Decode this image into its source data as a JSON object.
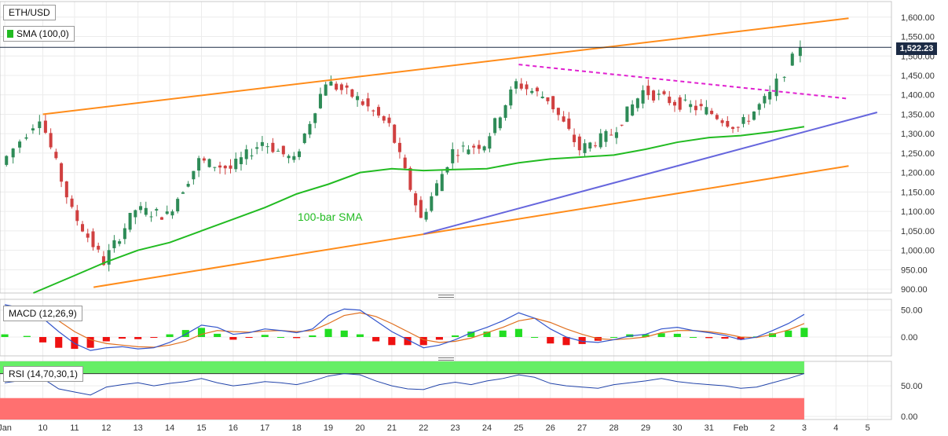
{
  "header": {
    "symbol": "ETH/USD",
    "sma_label": "SMA (100,0)",
    "macd_label": "MACD (12,26,9)",
    "rsi_label": "RSI (14,70,30,1)",
    "current_price": "1,522.23",
    "sma_annotation": "100-bar SMA"
  },
  "colors": {
    "up": "#2e8b57",
    "down": "#d04040",
    "sma": "#22bb22",
    "channel": "#ff8c1a",
    "support": "#6666dd",
    "resistance_dashed": "#e020d0",
    "macd_line": "#3355cc",
    "signal_line": "#e07020",
    "hist_up": "#22dd22",
    "hist_down": "#ee1111",
    "rsi_line": "#2244aa",
    "rsi_overbought_band": "#66ee66",
    "rsi_oversold_band": "#ff7070",
    "price_line": "#1c2b45"
  },
  "chart_data": [
    {
      "type": "candlestick",
      "title": "ETH/USD",
      "y_ticks": [
        "900.00",
        "950.00",
        "1,000.00",
        "1,050.00",
        "1,100.00",
        "1,150.00",
        "1,200.00",
        "1,250.00",
        "1,300.00",
        "1,350.00",
        "1,400.00",
        "1,450.00",
        "1,500.00",
        "1,550.00",
        "1,600.00"
      ],
      "y_tick_values": [
        900,
        950,
        1000,
        1050,
        1100,
        1150,
        1200,
        1250,
        1300,
        1350,
        1400,
        1450,
        1500,
        1550,
        1600
      ],
      "ylim": [
        890,
        1640
      ],
      "x_ticks": [
        "Jan",
        "10",
        "11",
        "12",
        "13",
        "14",
        "15",
        "16",
        "17",
        "18",
        "19",
        "20",
        "21",
        "22",
        "23",
        "24",
        "25",
        "26",
        "27",
        "28",
        "29",
        "30",
        "31",
        "Feb",
        "2",
        "3",
        "4",
        "5"
      ],
      "x_tick_days": [
        -1.2,
        0,
        1,
        2,
        3,
        4,
        5,
        6,
        7,
        8,
        9,
        10,
        11,
        12,
        13,
        14,
        15,
        16,
        17,
        18,
        19,
        20,
        21,
        22,
        23,
        24,
        25,
        26
      ],
      "xlim": [
        -1.35,
        26.75
      ],
      "candle_days": [
        -1.25,
        0,
        1,
        2,
        3,
        4,
        5,
        6,
        7,
        8,
        9,
        10,
        11,
        12,
        13,
        14,
        15,
        16,
        17,
        18,
        19,
        20,
        21,
        22,
        23,
        24
      ],
      "candle_closes": [
        1220,
        1345,
        1100,
        970,
        1105,
        1090,
        1230,
        1210,
        1280,
        1230,
        1435,
        1390,
        1320,
        1080,
        1255,
        1275,
        1430,
        1390,
        1260,
        1300,
        1410,
        1380,
        1360,
        1315,
        1400,
        1522
      ],
      "current_price": 1522.23,
      "sma_100": {
        "name": "100-bar SMA",
        "days": [
          -0.3,
          1,
          2,
          3,
          4,
          5,
          6,
          7,
          8,
          9,
          10,
          11,
          12,
          13,
          14,
          15,
          16,
          17,
          18,
          19,
          20,
          21,
          22,
          23,
          24
        ],
        "values": [
          890,
          935,
          970,
          1000,
          1020,
          1050,
          1080,
          1110,
          1145,
          1170,
          1200,
          1210,
          1205,
          1208,
          1210,
          1225,
          1235,
          1240,
          1245,
          1260,
          1278,
          1290,
          1295,
          1305,
          1318
        ]
      },
      "trendlines": [
        {
          "name": "upper channel",
          "style": "solid",
          "color": "#ff8c1a",
          "from": [
            0,
            1350
          ],
          "to": [
            25.4,
            1597
          ]
        },
        {
          "name": "lower channel",
          "style": "solid",
          "color": "#ff8c1a",
          "from": [
            1.6,
            905
          ],
          "to": [
            25.4,
            1217
          ]
        },
        {
          "name": "support",
          "style": "solid",
          "color": "#6666dd",
          "from": [
            12,
            1042
          ],
          "to": [
            26.3,
            1355
          ]
        },
        {
          "name": "resistance",
          "style": "dashed",
          "color": "#e020d0",
          "from": [
            15,
            1478
          ],
          "to": [
            25.4,
            1390
          ]
        }
      ]
    },
    {
      "type": "line",
      "title": "MACD (12,26,9)",
      "y_ticks": [
        "50.00",
        "0.00"
      ],
      "y_tick_values": [
        50,
        0
      ],
      "ylim": [
        -35,
        70
      ],
      "days": [
        -1.2,
        -0.5,
        0,
        0.5,
        1,
        1.5,
        2,
        2.5,
        3,
        3.5,
        4,
        4.5,
        5,
        5.5,
        6,
        6.5,
        7,
        7.5,
        8,
        8.5,
        9,
        9.5,
        10,
        10.5,
        11,
        11.5,
        12,
        12.5,
        13,
        13.5,
        14,
        14.5,
        15,
        15.5,
        16,
        16.5,
        17,
        17.5,
        18,
        18.5,
        19,
        19.5,
        20,
        20.5,
        21,
        21.5,
        22,
        22.5,
        23,
        23.5,
        24
      ],
      "macd": [
        60,
        52,
        35,
        10,
        -12,
        -25,
        -20,
        -18,
        -22,
        -20,
        -10,
        5,
        22,
        18,
        5,
        8,
        15,
        12,
        8,
        15,
        40,
        52,
        50,
        30,
        10,
        -5,
        -20,
        -15,
        -5,
        8,
        18,
        30,
        45,
        35,
        15,
        0,
        -8,
        -10,
        -5,
        2,
        5,
        15,
        18,
        12,
        8,
        3,
        -5,
        0,
        12,
        25,
        42
      ],
      "signal": [
        55,
        50,
        45,
        30,
        10,
        -5,
        -12,
        -15,
        -18,
        -19,
        -15,
        -8,
        5,
        12,
        10,
        9,
        11,
        12,
        10,
        12,
        25,
        40,
        45,
        38,
        25,
        10,
        -5,
        -10,
        -8,
        -2,
        8,
        18,
        30,
        35,
        27,
        15,
        5,
        -3,
        -5,
        -3,
        0,
        8,
        12,
        12,
        10,
        6,
        0,
        -1,
        5,
        13,
        25
      ],
      "hist": [
        5,
        2,
        -10,
        -20,
        -22,
        -20,
        -8,
        -3,
        -4,
        -1,
        5,
        13,
        17,
        6,
        -5,
        -1,
        4,
        0,
        -2,
        3,
        15,
        12,
        5,
        -8,
        -15,
        -15,
        -15,
        -5,
        3,
        10,
        10,
        12,
        15,
        0,
        -12,
        -15,
        -13,
        -7,
        0,
        5,
        5,
        7,
        6,
        0,
        -2,
        -3,
        -5,
        1,
        7,
        12,
        17
      ]
    },
    {
      "type": "line",
      "title": "RSI (14,70,30,1)",
      "y_ticks": [
        "50.00",
        "0.00"
      ],
      "y_tick_values": [
        50,
        0
      ],
      "ylim": [
        -5,
        90
      ],
      "overbought": 70,
      "oversold": 30,
      "days": [
        -1.2,
        -0.5,
        0,
        0.5,
        1,
        1.5,
        2,
        2.5,
        3,
        3.5,
        4,
        4.5,
        5,
        5.5,
        6,
        6.5,
        7,
        7.5,
        8,
        8.5,
        9,
        9.5,
        10,
        10.5,
        11,
        11.5,
        12,
        12.5,
        13,
        13.5,
        14,
        14.5,
        15,
        15.5,
        16,
        16.5,
        17,
        17.5,
        18,
        18.5,
        19,
        19.5,
        20,
        20.5,
        21,
        21.5,
        22,
        22.5,
        23,
        23.5,
        24
      ],
      "values": [
        55,
        60,
        62,
        45,
        40,
        35,
        48,
        52,
        55,
        50,
        54,
        57,
        62,
        55,
        50,
        53,
        57,
        55,
        52,
        58,
        66,
        70,
        68,
        58,
        50,
        45,
        44,
        52,
        56,
        52,
        58,
        62,
        68,
        64,
        54,
        50,
        48,
        46,
        52,
        55,
        58,
        62,
        57,
        54,
        52,
        50,
        46,
        48,
        55,
        62,
        70
      ]
    }
  ]
}
